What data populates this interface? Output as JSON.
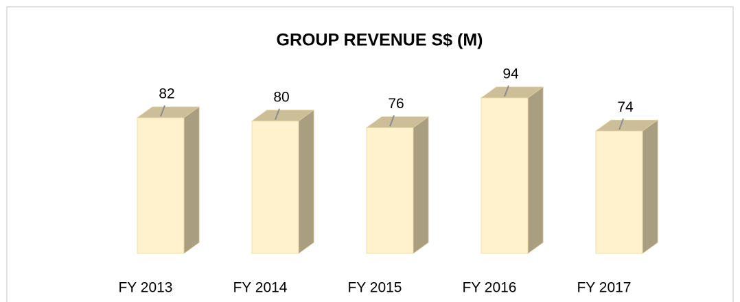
{
  "chart_data": {
    "type": "bar3d",
    "title": "GROUP  REVENUE  S$ (M)",
    "categories": [
      "FY 2013",
      "FY 2014",
      "FY 2015",
      "FY 2016",
      "FY 2017"
    ],
    "values": [
      82,
      80,
      76,
      94,
      74
    ],
    "color": "#fff2cc"
  }
}
